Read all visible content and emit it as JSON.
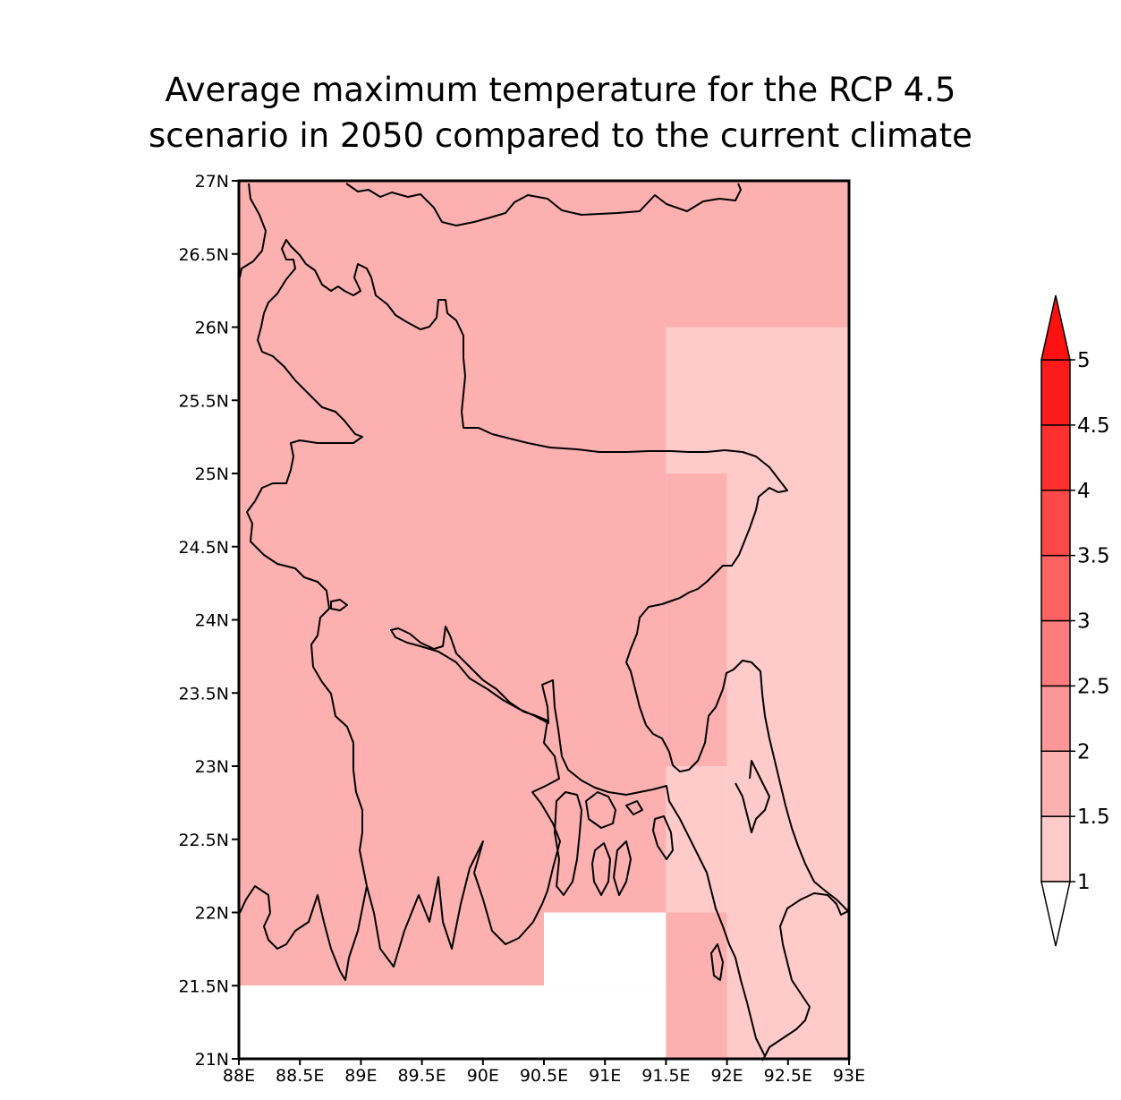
{
  "title": {
    "line1": "Average maximum temperature for the RCP 4.5",
    "line2": "scenario in 2050 compared to the current climate"
  },
  "map": {
    "lon_range": [
      88,
      93
    ],
    "lat_range": [
      21,
      27
    ],
    "lon_ticks": [
      "88E",
      "88.5E",
      "89E",
      "89.5E",
      "90E",
      "90.5E",
      "91E",
      "91.5E",
      "92E",
      "92.5E",
      "93E"
    ],
    "lat_ticks": [
      "27N",
      "26.5N",
      "26N",
      "25.5N",
      "25N",
      "24.5N",
      "24N",
      "23.5N",
      "23N",
      "22.5N",
      "22N",
      "21.5N",
      "21N"
    ],
    "cells": [
      {
        "lon": [
          88,
          93
        ],
        "lat": [
          26,
          27
        ],
        "color": "#fdb0b0"
      },
      {
        "lon": [
          88,
          91.5
        ],
        "lat": [
          21.5,
          26
        ],
        "color": "#fdb0b0"
      },
      {
        "lon": [
          91.5,
          92
        ],
        "lat": [
          23,
          25
        ],
        "color": "#fdb0b0"
      },
      {
        "lon": [
          91.5,
          93
        ],
        "lat": [
          25,
          26
        ],
        "color": "#ffcaca"
      },
      {
        "lon": [
          92,
          93
        ],
        "lat": [
          21,
          25
        ],
        "color": "#ffcaca"
      },
      {
        "lon": [
          91.5,
          92
        ],
        "lat": [
          22,
          23
        ],
        "color": "#ffcaca"
      },
      {
        "lon": [
          91.5,
          92
        ],
        "lat": [
          21,
          22
        ],
        "color": "#fdb0b0"
      },
      {
        "lon": [
          90.5,
          91.5
        ],
        "lat": [
          21.5,
          22
        ],
        "color": "#ffffff"
      },
      {
        "lon": [
          88,
          91.5
        ],
        "lat": [
          21,
          21.5
        ],
        "color": "#ffffff"
      }
    ]
  },
  "colorbar": {
    "levels": [
      "1",
      "1.5",
      "2",
      "2.5",
      "3",
      "3.5",
      "4",
      "4.5",
      "5"
    ],
    "colors": [
      "#ffcaca",
      "#fdb0b0",
      "#fd9696",
      "#fd7c7c",
      "#fd6262",
      "#fd4848",
      "#fd3030",
      "#fd1a1a"
    ],
    "over_color": "#fd1010",
    "under_color": "#ffffff"
  }
}
